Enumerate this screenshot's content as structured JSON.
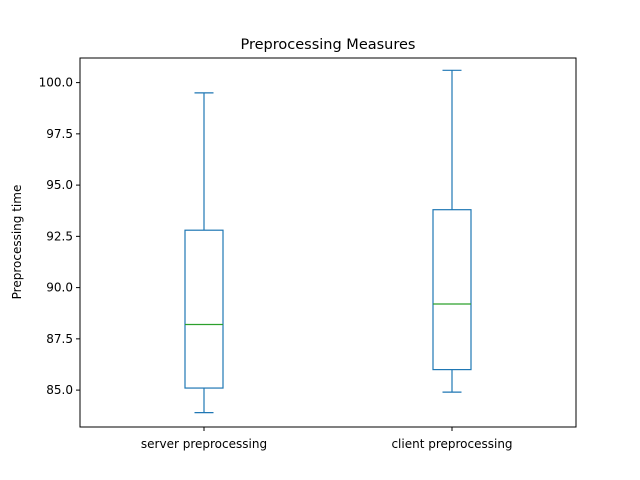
{
  "chart_data": {
    "type": "box",
    "title": "Preprocessing Measures",
    "xlabel": "",
    "ylabel": "Preprocessing time",
    "ylim": [
      83.2,
      101.2
    ],
    "yticks": [
      85.0,
      87.5,
      90.0,
      92.5,
      95.0,
      97.5,
      100.0
    ],
    "ytick_labels": [
      "85.0",
      "87.5",
      "90.0",
      "92.5",
      "95.0",
      "97.5",
      "100.0"
    ],
    "grid": false,
    "categories": [
      "server preprocessing",
      "client preprocessing"
    ],
    "boxes": [
      {
        "name": "server preprocessing",
        "whisker_low": 83.9,
        "q1": 85.1,
        "median": 88.2,
        "q3": 92.8,
        "whisker_high": 99.5
      },
      {
        "name": "client preprocessing",
        "whisker_low": 84.9,
        "q1": 86.0,
        "median": 89.2,
        "q3": 93.8,
        "whisker_high": 100.6
      }
    ],
    "colors": {
      "box": "#1f77b4",
      "median": "#2ca02c"
    }
  }
}
